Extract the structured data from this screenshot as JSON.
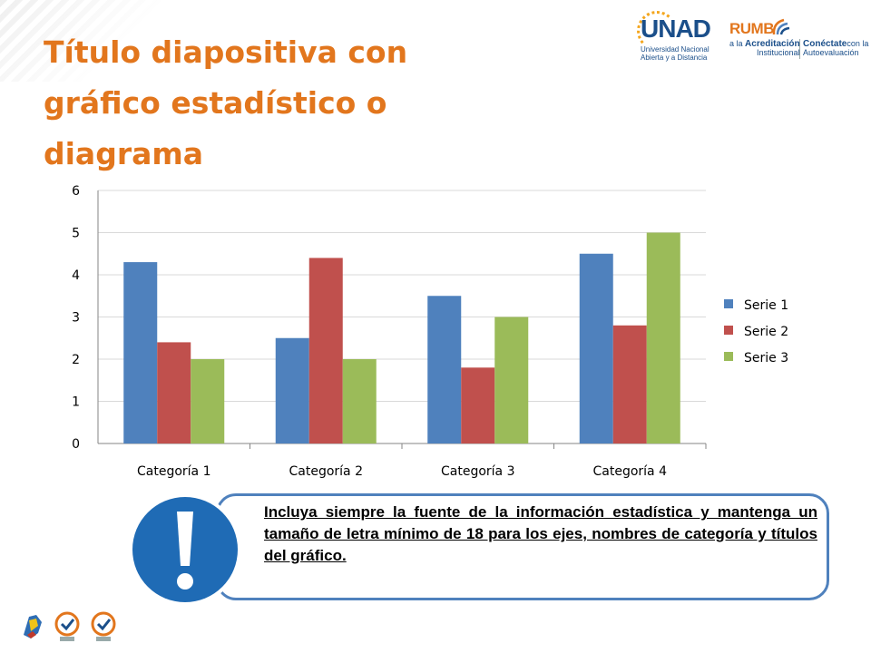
{
  "slide": {
    "title_lines": [
      "Título diapositiva con",
      "gráfico estadístico o",
      "diagrama"
    ]
  },
  "logos": {
    "unad_word": "UNAD",
    "unad_sub_1": "Universidad Nacional",
    "unad_sub_2": "Abierta y a Distancia",
    "rumbo_word": "RUMB",
    "rumbo_line_1a": "a la",
    "rumbo_line_1b": "Acreditación",
    "rumbo_line_2": "Institucional",
    "rumbo_right_1a": "Conéctate",
    "rumbo_right_1b": "con la",
    "rumbo_right_2": "Autoevaluación"
  },
  "callout": {
    "text": "Incluya siempre la fuente de la información estadística y mantenga un tamaño de letra mínimo de 18 para los ejes, nombres de categoría y títulos del gráfico."
  },
  "colors": {
    "title": "#e2761d",
    "series_1": "#4f81bd",
    "series_2": "#c0504d",
    "series_3": "#9bbb59",
    "callout_border": "#4f81bd",
    "warning_icon": "#1f6bb5"
  },
  "icons": [
    "warning-exclamation-icon",
    "colombia-map-icon",
    "sgs-certification-icon"
  ],
  "chart_data": {
    "type": "bar",
    "categories": [
      "Categoría 1",
      "Categoría 2",
      "Categoría 3",
      "Categoría 4"
    ],
    "series": [
      {
        "name": "Serie 1",
        "values": [
          4.3,
          2.5,
          3.5,
          4.5
        ]
      },
      {
        "name": "Serie 2",
        "values": [
          2.4,
          4.4,
          1.8,
          2.8
        ]
      },
      {
        "name": "Serie 3",
        "values": [
          2,
          2,
          3,
          5
        ]
      }
    ],
    "yticks": [
      "0",
      "1",
      "2",
      "3",
      "4",
      "5",
      "6"
    ],
    "ylim": [
      0,
      6
    ],
    "grid": true,
    "legend": "right"
  }
}
